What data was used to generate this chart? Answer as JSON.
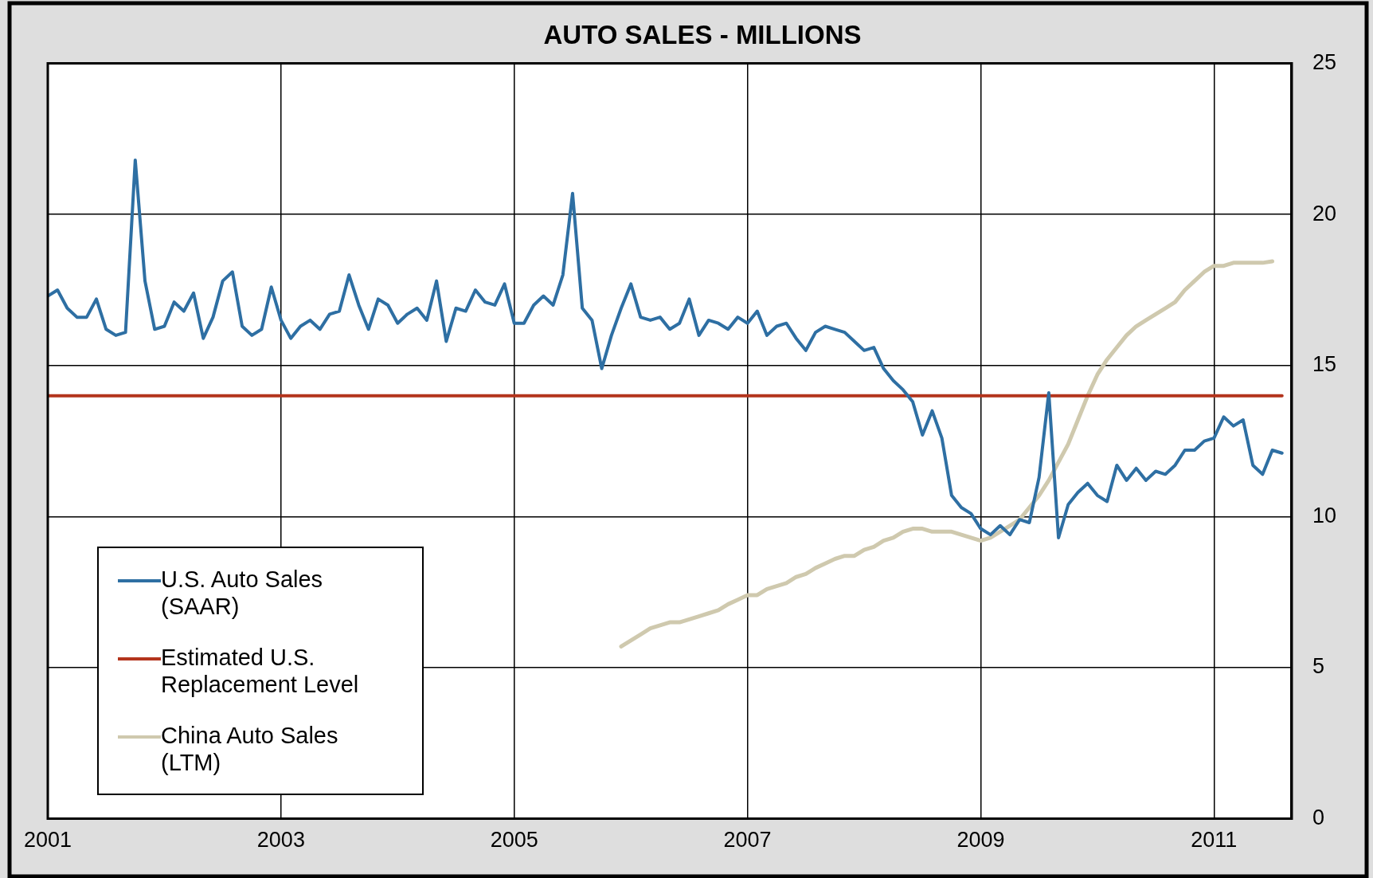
{
  "chart_data": {
    "type": "line",
    "title": "AUTO SALES - MILLIONS",
    "xlim": [
      "2001-01",
      "2011-09"
    ],
    "xticks": [
      "2001",
      "2003",
      "2005",
      "2007",
      "2009",
      "2011"
    ],
    "ylim": [
      0,
      25
    ],
    "yticks": [
      0,
      5,
      10,
      15,
      20,
      25
    ],
    "grid": true,
    "legend": "bottom left",
    "marker": "none",
    "line_style": "solid",
    "series": [
      {
        "name": "U.S. Auto Sales (SAAR)",
        "color": "#2e6fa3",
        "x": [
          "2001-01",
          "2001-02",
          "2001-03",
          "2001-04",
          "2001-05",
          "2001-06",
          "2001-07",
          "2001-08",
          "2001-09",
          "2001-10",
          "2001-11",
          "2001-12",
          "2002-01",
          "2002-02",
          "2002-03",
          "2002-04",
          "2002-05",
          "2002-06",
          "2002-07",
          "2002-08",
          "2002-09",
          "2002-10",
          "2002-11",
          "2002-12",
          "2003-01",
          "2003-02",
          "2003-03",
          "2003-04",
          "2003-05",
          "2003-06",
          "2003-07",
          "2003-08",
          "2003-09",
          "2003-10",
          "2003-11",
          "2003-12",
          "2004-01",
          "2004-02",
          "2004-03",
          "2004-04",
          "2004-05",
          "2004-06",
          "2004-07",
          "2004-08",
          "2004-09",
          "2004-10",
          "2004-11",
          "2004-12",
          "2005-01",
          "2005-02",
          "2005-03",
          "2005-04",
          "2005-05",
          "2005-06",
          "2005-07",
          "2005-08",
          "2005-09",
          "2005-10",
          "2005-11",
          "2005-12",
          "2006-01",
          "2006-02",
          "2006-03",
          "2006-04",
          "2006-05",
          "2006-06",
          "2006-07",
          "2006-08",
          "2006-09",
          "2006-10",
          "2006-11",
          "2006-12",
          "2007-01",
          "2007-02",
          "2007-03",
          "2007-04",
          "2007-05",
          "2007-06",
          "2007-07",
          "2007-08",
          "2007-09",
          "2007-10",
          "2007-11",
          "2007-12",
          "2008-01",
          "2008-02",
          "2008-03",
          "2008-04",
          "2008-05",
          "2008-06",
          "2008-07",
          "2008-08",
          "2008-09",
          "2008-10",
          "2008-11",
          "2008-12",
          "2009-01",
          "2009-02",
          "2009-03",
          "2009-04",
          "2009-05",
          "2009-06",
          "2009-07",
          "2009-08",
          "2009-09",
          "2009-10",
          "2009-11",
          "2009-12",
          "2010-01",
          "2010-02",
          "2010-03",
          "2010-04",
          "2010-05",
          "2010-06",
          "2010-07",
          "2010-08",
          "2010-09",
          "2010-10",
          "2010-11",
          "2010-12",
          "2011-01",
          "2011-02",
          "2011-03",
          "2011-04",
          "2011-05",
          "2011-06",
          "2011-07",
          "2011-08"
        ],
        "values": [
          17.3,
          17.5,
          16.9,
          16.6,
          16.6,
          17.2,
          16.2,
          16.0,
          16.1,
          21.8,
          17.8,
          16.2,
          16.3,
          17.1,
          16.8,
          17.4,
          15.9,
          16.6,
          17.8,
          18.1,
          16.3,
          16.0,
          16.2,
          17.6,
          16.5,
          15.9,
          16.3,
          16.5,
          16.2,
          16.7,
          16.8,
          18.0,
          17.0,
          16.2,
          17.2,
          17.0,
          16.4,
          16.7,
          16.9,
          16.5,
          17.8,
          15.8,
          16.9,
          16.8,
          17.5,
          17.1,
          17.0,
          17.7,
          16.4,
          16.4,
          17.0,
          17.3,
          17.0,
          18.0,
          20.7,
          16.9,
          16.5,
          14.9,
          16.0,
          16.9,
          17.7,
          16.6,
          16.5,
          16.6,
          16.2,
          16.4,
          17.2,
          16.0,
          16.5,
          16.4,
          16.2,
          16.6,
          16.4,
          16.8,
          16.0,
          16.3,
          16.4,
          15.9,
          15.5,
          16.1,
          16.3,
          16.2,
          16.1,
          15.8,
          15.5,
          15.6,
          14.9,
          14.5,
          14.2,
          13.8,
          12.7,
          13.5,
          12.6,
          10.7,
          10.3,
          10.1,
          9.6,
          9.4,
          9.7,
          9.4,
          9.9,
          9.8,
          11.3,
          14.1,
          9.3,
          10.4,
          10.8,
          11.1,
          10.7,
          10.5,
          11.7,
          11.2,
          11.6,
          11.2,
          11.5,
          11.4,
          11.7,
          12.2,
          12.2,
          12.5,
          12.6,
          13.3,
          13.0,
          13.2,
          11.7,
          11.4,
          12.2,
          12.1
        ]
      },
      {
        "name": "Estimated U.S. Replacement Level",
        "color": "#b3341c",
        "x": [
          "2001-01",
          "2011-08"
        ],
        "values": [
          14,
          14
        ]
      },
      {
        "name": "China Auto Sales (LTM)",
        "color": "#cfc9ae",
        "x": [
          "2005-12",
          "2006-01",
          "2006-02",
          "2006-03",
          "2006-04",
          "2006-05",
          "2006-06",
          "2006-07",
          "2006-08",
          "2006-09",
          "2006-10",
          "2006-11",
          "2006-12",
          "2007-01",
          "2007-02",
          "2007-03",
          "2007-04",
          "2007-05",
          "2007-06",
          "2007-07",
          "2007-08",
          "2007-09",
          "2007-10",
          "2007-11",
          "2007-12",
          "2008-01",
          "2008-02",
          "2008-03",
          "2008-04",
          "2008-05",
          "2008-06",
          "2008-07",
          "2008-08",
          "2008-09",
          "2008-10",
          "2008-11",
          "2008-12",
          "2009-01",
          "2009-02",
          "2009-03",
          "2009-04",
          "2009-05",
          "2009-06",
          "2009-07",
          "2009-08",
          "2009-09",
          "2009-10",
          "2009-11",
          "2009-12",
          "2010-01",
          "2010-02",
          "2010-03",
          "2010-04",
          "2010-05",
          "2010-06",
          "2010-07",
          "2010-08",
          "2010-09",
          "2010-10",
          "2010-11",
          "2010-12",
          "2011-01",
          "2011-02",
          "2011-03",
          "2011-04",
          "2011-05",
          "2011-06",
          "2011-07"
        ],
        "values": [
          5.7,
          5.9,
          6.1,
          6.3,
          6.4,
          6.5,
          6.5,
          6.6,
          6.7,
          6.8,
          6.9,
          7.1,
          7.25,
          7.4,
          7.4,
          7.6,
          7.7,
          7.8,
          8.0,
          8.1,
          8.3,
          8.45,
          8.6,
          8.7,
          8.7,
          8.9,
          9.0,
          9.2,
          9.3,
          9.5,
          9.6,
          9.6,
          9.5,
          9.5,
          9.5,
          9.4,
          9.3,
          9.2,
          9.3,
          9.5,
          9.7,
          9.9,
          10.3,
          10.7,
          11.2,
          11.8,
          12.4,
          13.2,
          14.0,
          14.7,
          15.2,
          15.6,
          16.0,
          16.3,
          16.5,
          16.7,
          16.9,
          17.1,
          17.5,
          17.8,
          18.1,
          18.3,
          18.3,
          18.4,
          18.4,
          18.4,
          18.4,
          18.45
        ]
      }
    ]
  }
}
